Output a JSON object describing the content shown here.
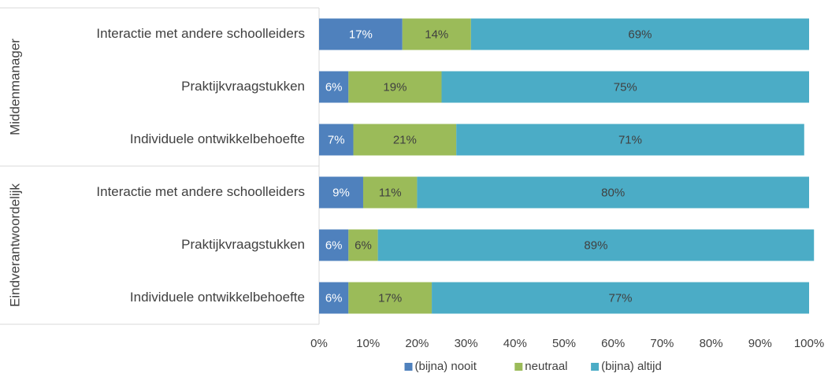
{
  "chart_data": {
    "type": "bar",
    "orientation": "horizontal",
    "stacked": true,
    "groups": [
      {
        "name": "Middenmanager",
        "categories": [
          "Interactie met andere schoolleiders",
          "Praktijkvraagstukken",
          "Individuele ontwikkelbehoefte"
        ]
      },
      {
        "name": "Eindverantwoordelijk",
        "categories": [
          "Interactie met andere schoolleiders",
          "Praktijkvraagstukken",
          "Individuele ontwikkelbehoefte"
        ]
      }
    ],
    "series": [
      {
        "name": "(bijna) nooit",
        "color": "#4f81bd",
        "label_color": "#ffffff",
        "values": [
          17,
          6,
          7,
          9,
          6,
          6
        ],
        "value_labels": [
          "17%",
          "6%",
          "7%",
          "9%",
          "6%",
          "6%"
        ]
      },
      {
        "name": "neutraal",
        "color": "#9bbb59",
        "label_color": "#404040",
        "values": [
          14,
          19,
          21,
          11,
          6,
          17
        ],
        "value_labels": [
          "14%",
          "19%",
          "21%",
          "11%",
          "6%",
          "17%"
        ]
      },
      {
        "name": "(bijna) altijd",
        "color": "#4bacc6",
        "label_color": "#404040",
        "values": [
          69,
          75,
          71,
          80,
          89,
          77
        ],
        "value_labels": [
          "69%",
          "75%",
          "71%",
          "80%",
          "89%",
          "77%"
        ]
      }
    ],
    "xlim": [
      0,
      100
    ],
    "xticks": [
      {
        "value": 0,
        "label": "0%"
      },
      {
        "value": 10,
        "label": "10%"
      },
      {
        "value": 20,
        "label": "20%"
      },
      {
        "value": 30,
        "label": "30%"
      },
      {
        "value": 40,
        "label": "40%"
      },
      {
        "value": 50,
        "label": "50%"
      },
      {
        "value": 60,
        "label": "60%"
      },
      {
        "value": 70,
        "label": "70%"
      },
      {
        "value": 80,
        "label": "80%"
      },
      {
        "value": 90,
        "label": "90%"
      },
      {
        "value": 100,
        "label": "100%"
      }
    ],
    "grid": false,
    "legend": "bottom"
  }
}
